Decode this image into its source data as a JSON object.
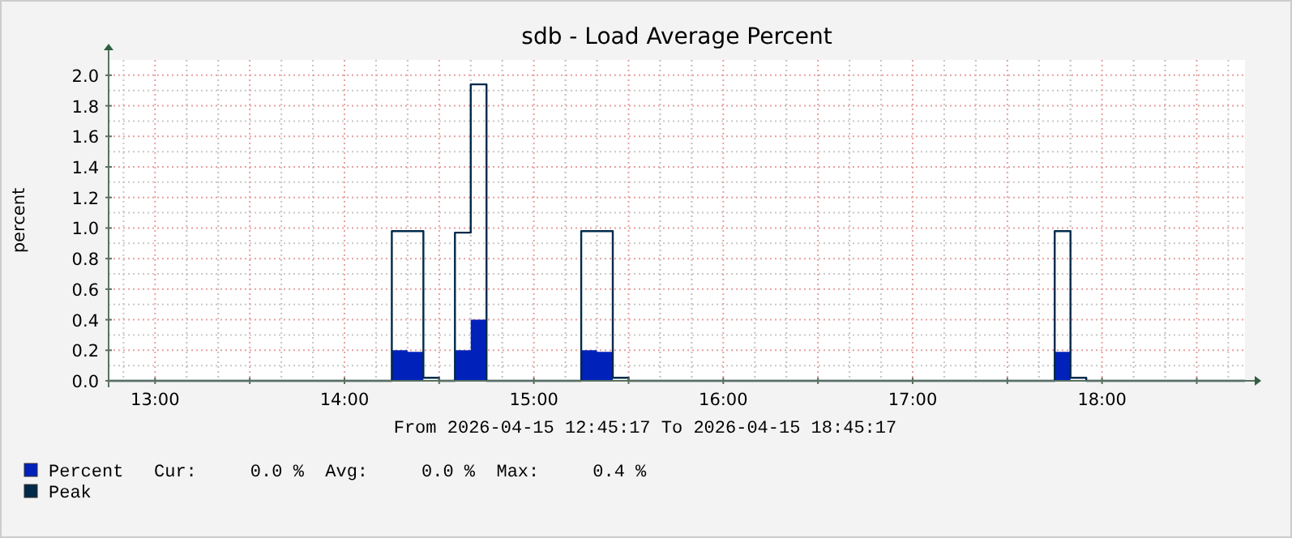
{
  "chart_data": {
    "type": "step",
    "title": "sdb - Load Average Percent",
    "xlabel": "From 2026-04-15 12:45:17 To 2026-04-15 18:45:17",
    "ylabel": "percent",
    "xlim": [
      12.7547,
      18.7547
    ],
    "ylim": [
      0,
      2.1
    ],
    "xticks": [
      {
        "value": 13,
        "label": "13:00"
      },
      {
        "value": 13.5,
        "label": null
      },
      {
        "value": 14,
        "label": "14:00"
      },
      {
        "value": 14.5,
        "label": null
      },
      {
        "value": 15,
        "label": "15:00"
      },
      {
        "value": 15.5,
        "label": null
      },
      {
        "value": 16,
        "label": "16:00"
      },
      {
        "value": 16.5,
        "label": null
      },
      {
        "value": 17,
        "label": "17:00"
      },
      {
        "value": 17.5,
        "label": null
      },
      {
        "value": 18,
        "label": "18:00"
      },
      {
        "value": 18.5,
        "label": null
      }
    ],
    "yticks": [
      {
        "value": 0,
        "label": "0.0"
      },
      {
        "value": 0.2,
        "label": "0.2"
      },
      {
        "value": 0.4,
        "label": "0.4"
      },
      {
        "value": 0.6,
        "label": "0.6"
      },
      {
        "value": 0.8,
        "label": "0.8"
      },
      {
        "value": 1,
        "label": "1.0"
      },
      {
        "value": 1.2,
        "label": "1.2"
      },
      {
        "value": 1.4,
        "label": "1.4"
      },
      {
        "value": 1.6,
        "label": "1.6"
      },
      {
        "value": 1.8,
        "label": "1.8"
      },
      {
        "value": 2,
        "label": "2.0"
      }
    ],
    "grid": true,
    "legend": "bottom",
    "series": [
      {
        "name": "Percent",
        "type": "area",
        "color": "#0022bb",
        "x": [
          12.7547,
          14.25,
          14.3333,
          14.4167,
          14.5833,
          14.6667,
          14.75,
          15.25,
          15.3333,
          15.4167,
          17.75,
          17.8333,
          18.7547
        ],
        "values": [
          0,
          0.2,
          0.19,
          0,
          0.2,
          0.4,
          0,
          0.2,
          0.19,
          0,
          0.19,
          0,
          0
        ]
      },
      {
        "name": "Peak",
        "color": "#002a4a",
        "x": [
          12.7547,
          14.25,
          14.4167,
          14.5,
          14.5833,
          14.6667,
          14.75,
          15.25,
          15.4167,
          15.5,
          17.75,
          17.8333,
          17.9167,
          18.7547
        ],
        "values": [
          0,
          0.98,
          0.02,
          0,
          0.97,
          1.94,
          0,
          0.98,
          0.02,
          0,
          0.98,
          0.02,
          0,
          0
        ]
      }
    ],
    "annotations": [
      "Cur:     0.0 %  Avg:     0.0 %  Max:     0.4 %"
    ]
  }
}
